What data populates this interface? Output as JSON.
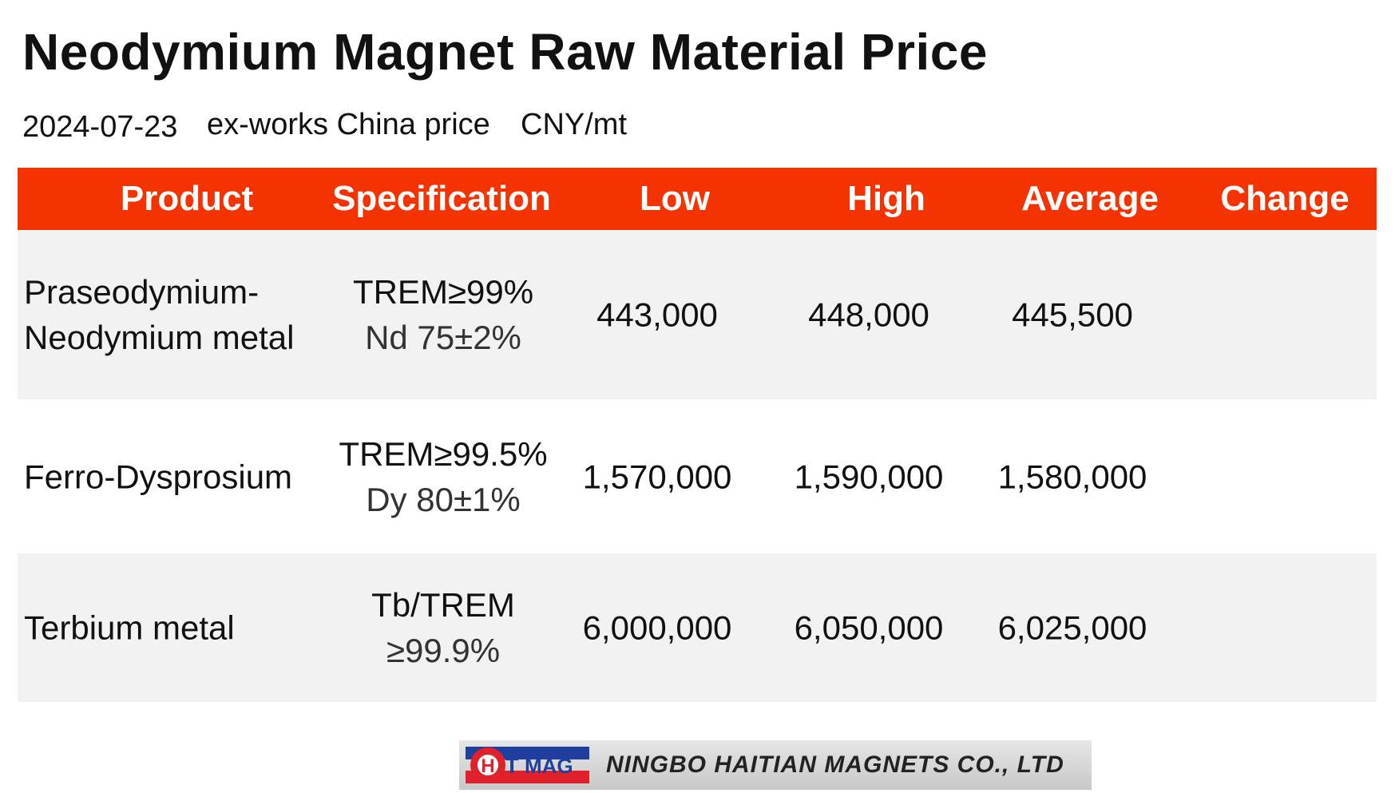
{
  "header": {
    "title": "Neodymium Magnet Raw Material Price",
    "date": "2024-07-23",
    "basis": "ex-works China price",
    "unit": "CNY/mt"
  },
  "table": {
    "columns": [
      "Product",
      "Specification",
      "Low",
      "High",
      "Average",
      "Change"
    ],
    "rows": [
      {
        "product": [
          "Praseodymium-",
          "Neodymium metal"
        ],
        "spec": [
          "TREM≥99%",
          "Nd 75±2%"
        ],
        "low": "443,000",
        "high": "448,000",
        "average": "445,500"
      },
      {
        "product": [
          "Ferro-Dysprosium"
        ],
        "spec": [
          "TREM≥99.5%",
          "Dy 80±1%"
        ],
        "low": "1,570,000",
        "high": "1,590,000",
        "average": "1,580,000"
      },
      {
        "product": [
          "Terbium metal"
        ],
        "spec": [
          "Tb/TREM",
          "≥99.9%"
        ],
        "low": "6,000,000",
        "high": "6,050,000",
        "average": "6,025,000"
      }
    ]
  },
  "logo": {
    "mark_h": "H",
    "mark_t": "T",
    "mark_mag": "MAG",
    "company": "NINGBO HAITIAN MAGNETS CO., LTD"
  }
}
